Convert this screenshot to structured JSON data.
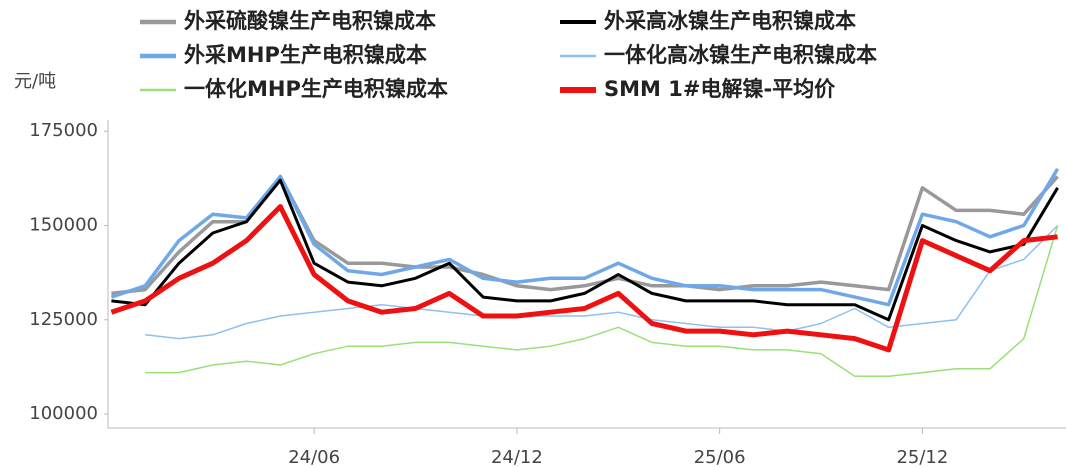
{
  "chart_data": {
    "type": "line",
    "y_label": "元/吨",
    "x": [
      "23/12",
      "24/01",
      "24/02",
      "24/03",
      "24/04",
      "24/05",
      "24/06",
      "24/07",
      "24/08",
      "24/09",
      "24/10",
      "24/11",
      "24/12",
      "25/01",
      "25/02",
      "25/03",
      "25/04",
      "25/05",
      "25/06",
      "25/07",
      "25/08",
      "25/09",
      "25/10",
      "25/11",
      "25/12",
      "26/01",
      "26/02",
      "26/03",
      "26/04"
    ],
    "xticks": [
      "24/06",
      "24/12",
      "25/06",
      "25/12"
    ],
    "ylim": [
      96300,
      178500
    ],
    "yticks": [
      100000,
      125000,
      150000,
      175000
    ],
    "series": [
      {
        "name": "外采硫酸镍生产电积镍成本",
        "color": "#999999",
        "values": [
          132000,
          133000,
          143000,
          151000,
          151000,
          163000,
          146000,
          140000,
          140000,
          139000,
          139000,
          137000,
          134000,
          133000,
          134000,
          136000,
          134000,
          134000,
          133000,
          134000,
          134000,
          135000,
          134000,
          133000,
          160000,
          154000,
          154000,
          153000,
          163000
        ]
      },
      {
        "name": "外采高冰镍生产电积镍成本",
        "color": "#000000",
        "values": [
          130000,
          129000,
          140000,
          148000,
          151000,
          162000,
          140000,
          135000,
          134000,
          136000,
          140000,
          131000,
          130000,
          130000,
          132000,
          137000,
          132000,
          130000,
          130000,
          130000,
          129000,
          129000,
          129000,
          125000,
          150000,
          146000,
          143000,
          145000,
          160000
        ]
      },
      {
        "name": "外采MHP生产电积镍成本",
        "color": "#6fa8e8",
        "values": [
          131000,
          134000,
          146000,
          153000,
          152000,
          163000,
          145000,
          138000,
          137000,
          139000,
          141000,
          136000,
          135000,
          136000,
          136000,
          140000,
          136000,
          134000,
          134000,
          133000,
          133000,
          133000,
          131000,
          129000,
          153000,
          151000,
          147000,
          150000,
          165000
        ]
      },
      {
        "name": "一体化高冰镍生产电积镍成本",
        "color": "#8fc0ee",
        "values": [
          null,
          121000,
          120000,
          121000,
          124000,
          126000,
          127000,
          128000,
          129000,
          128000,
          127000,
          126000,
          126000,
          126000,
          126000,
          127000,
          125000,
          124000,
          123000,
          123000,
          122000,
          124000,
          128000,
          123000,
          124000,
          125000,
          138000,
          141000,
          150000
        ]
      },
      {
        "name": "一体化MHP生产电积镍成本",
        "color": "#99e07a",
        "values": [
          null,
          111000,
          111000,
          113000,
          114000,
          113000,
          116000,
          118000,
          118000,
          119000,
          119000,
          118000,
          117000,
          118000,
          120000,
          123000,
          119000,
          118000,
          118000,
          117000,
          117000,
          116000,
          110000,
          110000,
          111000,
          112000,
          112000,
          120000,
          150000
        ]
      },
      {
        "name": "SMM 1#电解镍-平均价",
        "color": "#ee1111",
        "values": [
          127000,
          130000,
          136000,
          140000,
          146000,
          155000,
          137000,
          130000,
          127000,
          128000,
          132000,
          126000,
          126000,
          127000,
          128000,
          132000,
          124000,
          122000,
          122000,
          121000,
          122000,
          121000,
          120000,
          117000,
          146000,
          142000,
          138000,
          146000,
          147000
        ]
      }
    ]
  }
}
